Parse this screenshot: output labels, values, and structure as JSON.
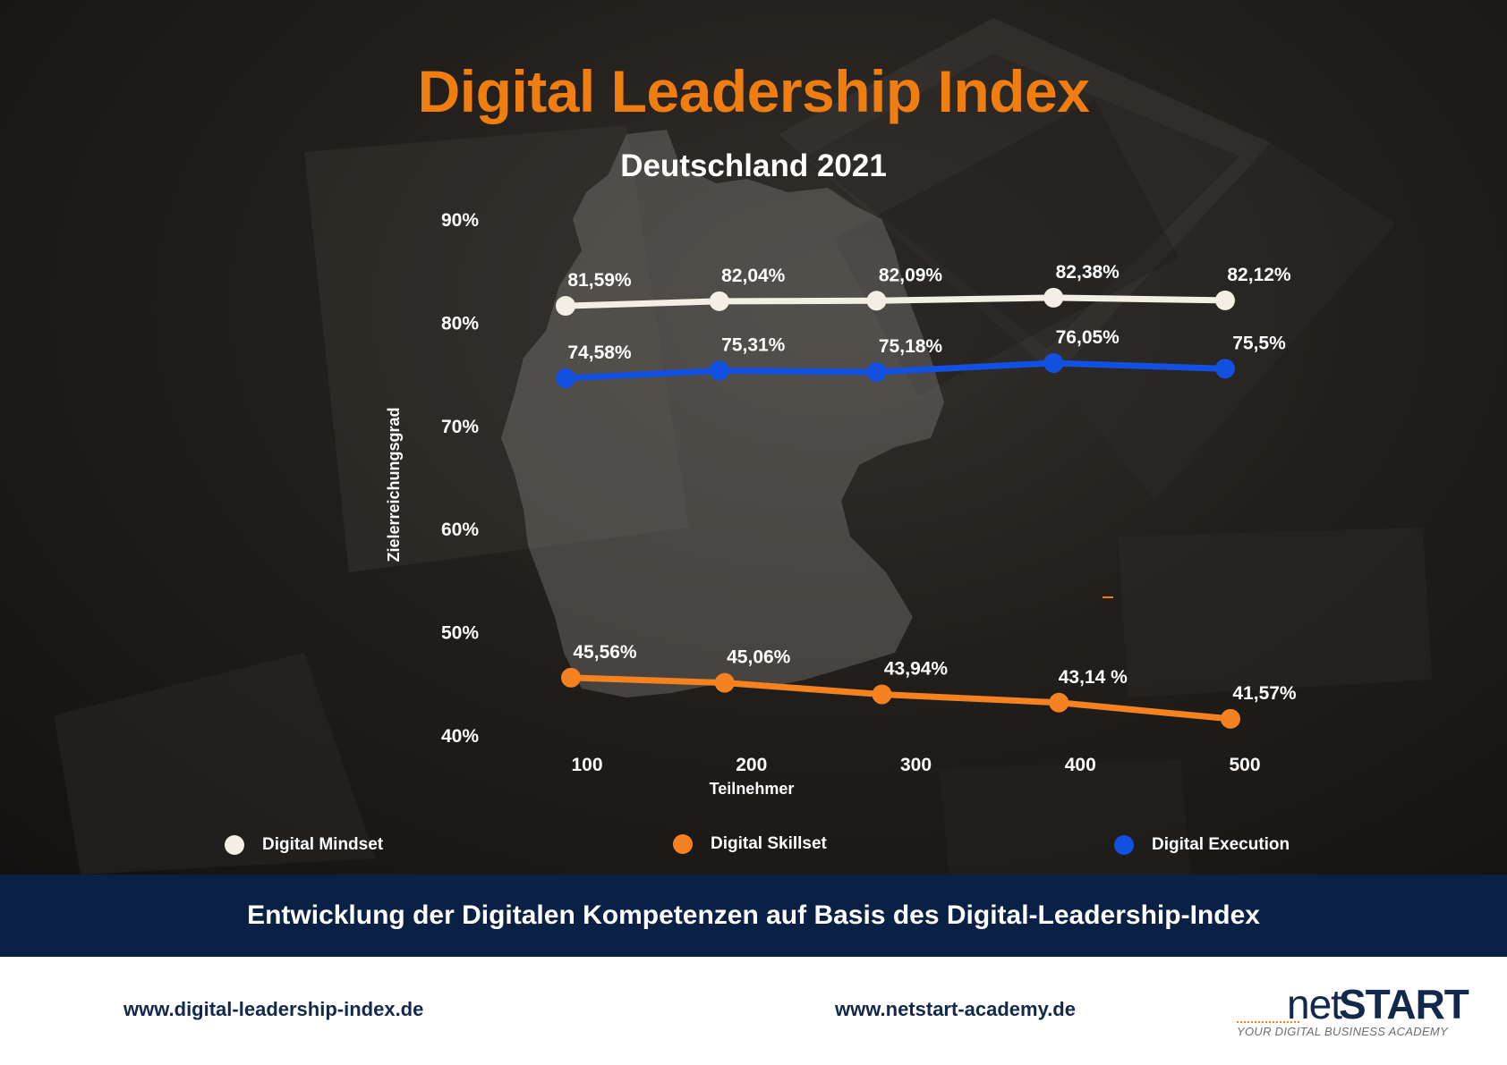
{
  "header": {
    "title": "Digital Leadership Index",
    "subtitle": "Deutschland 2021"
  },
  "chart_data": {
    "type": "line",
    "title": "Digital Leadership Index",
    "subtitle": "Deutschland 2021",
    "xlabel": "Teilnehmer",
    "ylabel": "Zielerreichungsgrad",
    "x": [
      100,
      200,
      300,
      400,
      500
    ],
    "x_tick_labels": [
      "100",
      "200",
      "300",
      "400",
      "500"
    ],
    "y_ticks": [
      40,
      50,
      60,
      70,
      80,
      90
    ],
    "y_tick_labels": [
      "40%",
      "50%",
      "60%",
      "70%",
      "80%",
      "90%"
    ],
    "ylim": [
      40,
      90
    ],
    "grid": false,
    "legend_position": "bottom",
    "series": [
      {
        "name": "Digital Mindset",
        "color": "#f3efe4",
        "values": [
          81.59,
          82.04,
          82.09,
          82.38,
          82.12
        ],
        "labels": [
          "81,59%",
          "82,04%",
          "82,09%",
          "82,38%",
          "82,12%"
        ]
      },
      {
        "name": "Digital Execution",
        "color": "#1150e0",
        "values": [
          74.58,
          75.31,
          75.18,
          76.05,
          75.5
        ],
        "labels": [
          "74,58%",
          "75,31%",
          "75,18%",
          "76,05%",
          "75,5%"
        ]
      },
      {
        "name": "Digital Skillset",
        "color": "#f58220",
        "values": [
          45.56,
          45.06,
          43.94,
          43.14,
          41.57
        ],
        "labels": [
          "45,56%",
          "45,06%",
          "43,94%",
          "43,14 %",
          "41,57%"
        ]
      }
    ]
  },
  "legend": {
    "mindset": {
      "label": "Digital Mindset",
      "color": "#f3efe4"
    },
    "skillset": {
      "label": "Digital Skillset",
      "color": "#f58220"
    },
    "execution": {
      "label": "Digital Execution",
      "color": "#1150e0"
    }
  },
  "banner": {
    "text": "Entwicklung der Digitalen Kompetenzen auf Basis des Digital-Leadership-Index"
  },
  "footer": {
    "link_left": "www.digital-leadership-index.de",
    "link_right": "www.netstart-academy.de",
    "logo_net": "net",
    "logo_start": "START",
    "logo_tagline": "YOUR DIGITAL BUSINESS ACADEMY"
  }
}
